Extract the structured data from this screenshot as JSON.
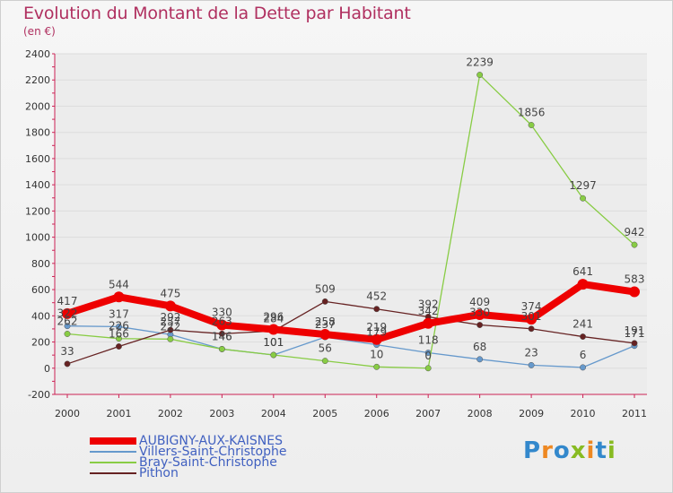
{
  "chart_data": {
    "type": "line",
    "title": "Evolution du Montant de la Dette par Habitant",
    "subtitle": "(en €)",
    "categories": [
      "2000",
      "2001",
      "2002",
      "2003",
      "2004",
      "2005",
      "2006",
      "2007",
      "2008",
      "2009",
      "2010",
      "2011"
    ],
    "yticks": [
      -200,
      0,
      200,
      400,
      600,
      800,
      1000,
      1200,
      1400,
      1600,
      1800,
      2000,
      2200,
      2400
    ],
    "ylim": [
      -200,
      2400
    ],
    "grid": "horizontal",
    "legend_position": "bottom-left",
    "series": [
      {
        "name": "AUBIGNY-AUX-KAISNES",
        "color": "#ee0000",
        "values": [
          417,
          544,
          475,
          330,
          296,
          258,
          219,
          342,
          409,
          374,
          641,
          583
        ]
      },
      {
        "name": "Villers-Saint-Christophe",
        "color": "#6699cc",
        "values": [
          322,
          317,
          257,
          146,
          101,
          237,
          179,
          118,
          68,
          23,
          6,
          171
        ]
      },
      {
        "name": "Bray-Saint-Christophe",
        "color": "#88cc44",
        "values": [
          262,
          226,
          222,
          146,
          101,
          56,
          10,
          0,
          2239,
          1856,
          1297,
          942
        ]
      },
      {
        "name": "Pithon",
        "color": "#662222",
        "values": [
          33,
          166,
          292,
          263,
          284,
          509,
          452,
          392,
          330,
          301,
          241,
          191
        ]
      }
    ]
  },
  "logo": {
    "text": "Proxiti"
  }
}
